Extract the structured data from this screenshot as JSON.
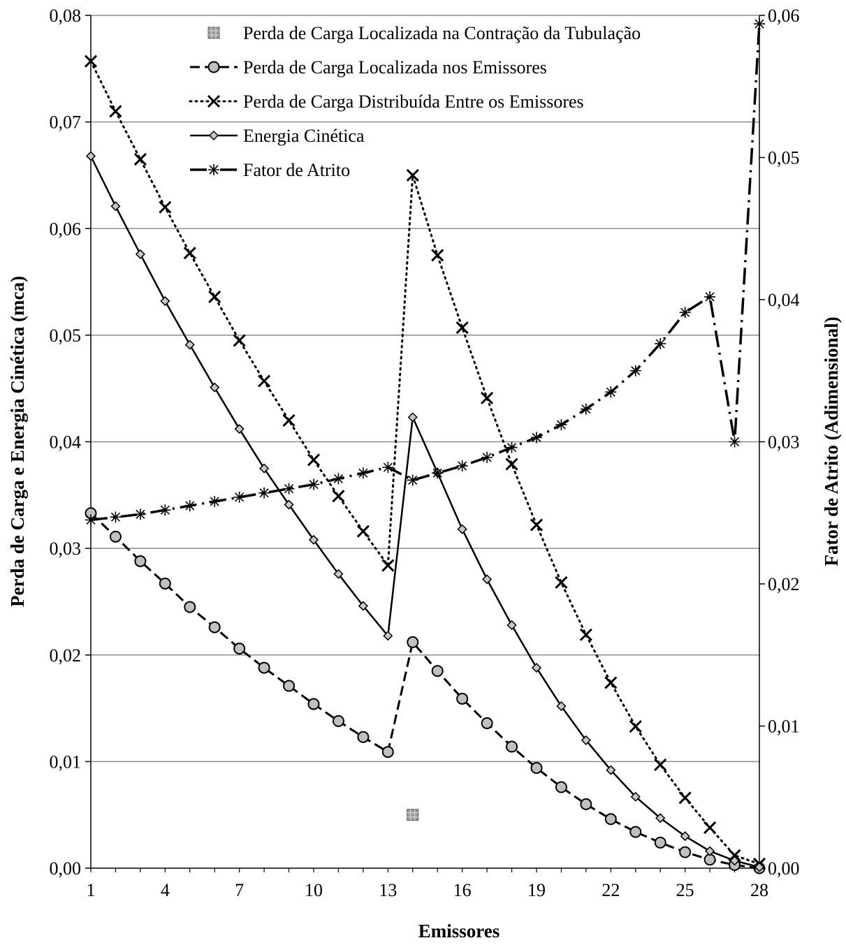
{
  "chart_data": {
    "type": "line",
    "xlabel": "Emissores",
    "ylabel_left": "Perda de Carga e Energia Cinética (mca)",
    "ylabel_right": "Fator de Atrito (Adimensional)",
    "x": [
      1,
      2,
      3,
      4,
      5,
      6,
      7,
      8,
      9,
      10,
      11,
      12,
      13,
      14,
      15,
      16,
      17,
      18,
      19,
      20,
      21,
      22,
      23,
      24,
      25,
      26,
      27,
      28
    ],
    "x_ticks": [
      "1",
      "4",
      "7",
      "10",
      "13",
      "16",
      "19",
      "22",
      "25",
      "28"
    ],
    "x_tick_values": [
      1,
      4,
      7,
      10,
      13,
      16,
      19,
      22,
      25,
      28
    ],
    "ylim_left": [
      0,
      0.08
    ],
    "ylim_right": [
      0,
      0.06
    ],
    "y_ticks_left": [
      "0,00",
      "0,01",
      "0,02",
      "0,03",
      "0,04",
      "0,05",
      "0,06",
      "0,07",
      "0,08"
    ],
    "y_ticks_right": [
      "0,00",
      "0,01",
      "0,02",
      "0,03",
      "0,04",
      "0,05",
      "0,06"
    ],
    "grid": true,
    "legend_position": "top-right",
    "series": [
      {
        "name": "Perda de Carga Localizada na Contração da Tubulação",
        "axis": "left",
        "style": "point-square",
        "color": "#808080",
        "points": [
          [
            14,
            0.005
          ]
        ]
      },
      {
        "name": "Perda de Carga Localizada nos Emissores",
        "axis": "left",
        "style": "dashed-circle",
        "color": "#000000",
        "values": [
          0.0333,
          0.0311,
          0.0288,
          0.0267,
          0.0245,
          0.0226,
          0.0206,
          0.0188,
          0.0171,
          0.0154,
          0.0138,
          0.0123,
          0.0109,
          0.0212,
          0.0185,
          0.0159,
          0.0136,
          0.0114,
          0.0094,
          0.0076,
          0.006,
          0.0046,
          0.0034,
          0.0024,
          0.0015,
          0.0008,
          0.0003,
          0.0
        ]
      },
      {
        "name": "Perda de Carga Distribuída Entre os Emissores",
        "axis": "left",
        "style": "dotted-x",
        "color": "#000000",
        "values": [
          0.0757,
          0.071,
          0.0665,
          0.062,
          0.0577,
          0.0536,
          0.0495,
          0.0457,
          0.042,
          0.0383,
          0.0349,
          0.0316,
          0.0284,
          0.065,
          0.0575,
          0.0507,
          0.0441,
          0.0379,
          0.0322,
          0.0268,
          0.0219,
          0.0174,
          0.0133,
          0.0097,
          0.0066,
          0.0038,
          0.0012,
          0.0004
        ]
      },
      {
        "name": "Energia Cinética",
        "axis": "left",
        "style": "solid-diamond",
        "color": "#000000",
        "values": [
          0.0668,
          0.0621,
          0.0576,
          0.0532,
          0.0491,
          0.0451,
          0.0412,
          0.0375,
          0.0341,
          0.0308,
          0.0276,
          0.0246,
          0.0218,
          0.0423,
          0.0371,
          0.0318,
          0.0271,
          0.0228,
          0.0188,
          0.0152,
          0.012,
          0.0092,
          0.0067,
          0.0047,
          0.003,
          0.0016,
          0.0007,
          0.0001
        ]
      },
      {
        "name": "Fator de Atrito",
        "axis": "right",
        "style": "dashdot-star",
        "color": "#000000",
        "values": [
          0.0245,
          0.0247,
          0.0249,
          0.0252,
          0.0255,
          0.0258,
          0.0261,
          0.0264,
          0.0267,
          0.027,
          0.0274,
          0.0278,
          0.0282,
          0.0273,
          0.0278,
          0.0283,
          0.0289,
          0.0296,
          0.0303,
          0.0312,
          0.0323,
          0.0335,
          0.035,
          0.0369,
          0.0391,
          0.0402,
          0.03,
          0.0594
        ]
      }
    ]
  }
}
